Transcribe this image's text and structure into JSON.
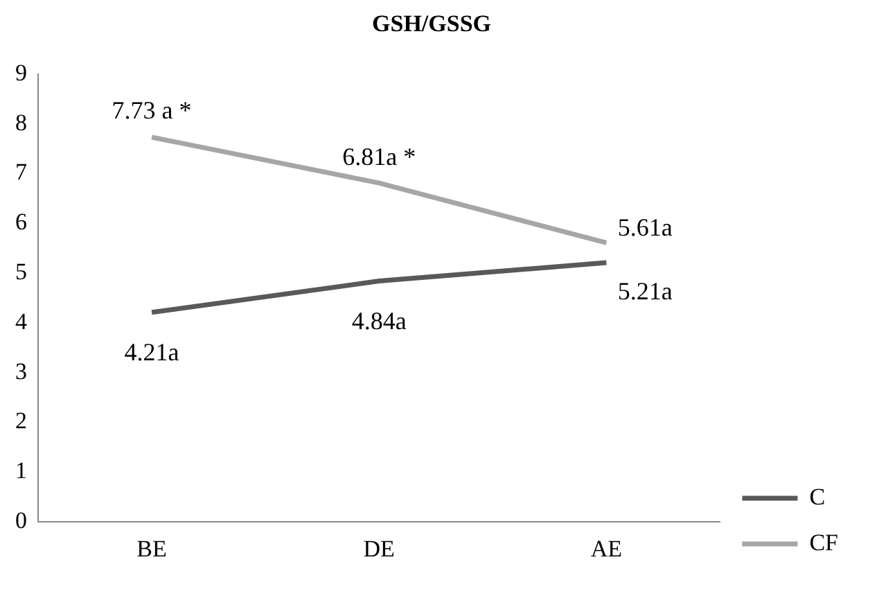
{
  "chart_data": {
    "type": "line",
    "title": "GSH/GSSG",
    "categories": [
      "BE",
      "DE",
      "AE"
    ],
    "series": [
      {
        "name": "C",
        "color": "#595959",
        "values": [
          4.21,
          4.84,
          5.21
        ],
        "value_labels": [
          "4.21a",
          "4.84a",
          "5.21a"
        ]
      },
      {
        "name": "CF",
        "color": "#a6a6a6",
        "values": [
          7.73,
          6.81,
          5.61
        ],
        "value_labels": [
          "7.73 a *",
          "6.81a *",
          "5.61a"
        ]
      }
    ],
    "ylim": [
      0,
      9
    ],
    "yticks": [
      0,
      1,
      2,
      3,
      4,
      5,
      6,
      7,
      8,
      9
    ],
    "grid": false,
    "legend": "right",
    "marker": "none",
    "line_style": "solid"
  }
}
